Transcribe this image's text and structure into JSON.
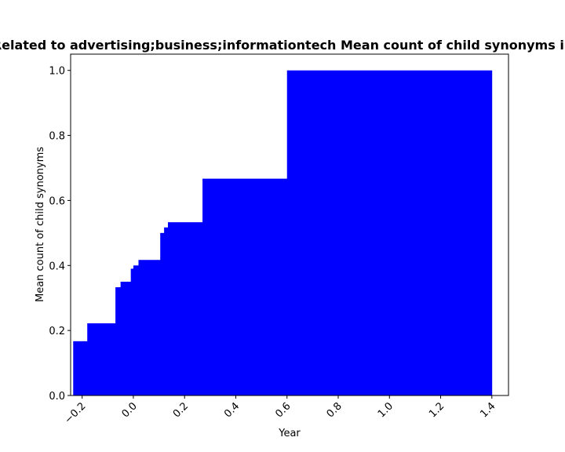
{
  "chart_data": {
    "type": "bar",
    "title": "Related to advertising;business;informationtech Mean count of child synonyms in",
    "xlabel": "Year",
    "ylabel": "Mean count of child synonyms",
    "xlim": [
      -0.245,
      1.465
    ],
    "ylim": [
      0,
      1.05
    ],
    "grid": false,
    "color": "#0000ff",
    "xticks": [
      -0.2,
      0.0,
      0.2,
      0.4,
      0.6,
      0.8,
      1.0,
      1.2,
      1.4
    ],
    "xtick_labels": [
      "−0.2",
      "0.0",
      "0.2",
      "0.4",
      "0.6",
      "0.8",
      "1.0",
      "1.2",
      "1.4"
    ],
    "yticks": [
      0.0,
      0.2,
      0.4,
      0.6,
      0.8,
      1.0
    ],
    "ytick_labels": [
      "0.0",
      "0.2",
      "0.4",
      "0.6",
      "0.8",
      "1.0"
    ],
    "bars": [
      {
        "x0": -0.235,
        "x1": -0.18,
        "value": 0.167
      },
      {
        "x0": -0.18,
        "x1": -0.07,
        "value": 0.222
      },
      {
        "x0": -0.07,
        "x1": -0.05,
        "value": 0.333
      },
      {
        "x0": -0.05,
        "x1": -0.01,
        "value": 0.35
      },
      {
        "x0": -0.01,
        "x1": 0.0,
        "value": 0.39
      },
      {
        "x0": 0.0,
        "x1": 0.02,
        "value": 0.4
      },
      {
        "x0": 0.02,
        "x1": 0.105,
        "value": 0.417
      },
      {
        "x0": 0.105,
        "x1": 0.12,
        "value": 0.5
      },
      {
        "x0": 0.12,
        "x1": 0.135,
        "value": 0.517
      },
      {
        "x0": 0.135,
        "x1": 0.27,
        "value": 0.533
      },
      {
        "x0": 0.27,
        "x1": 0.6,
        "value": 0.667
      },
      {
        "x0": 0.6,
        "x1": 1.4,
        "value": 1.0
      }
    ]
  }
}
